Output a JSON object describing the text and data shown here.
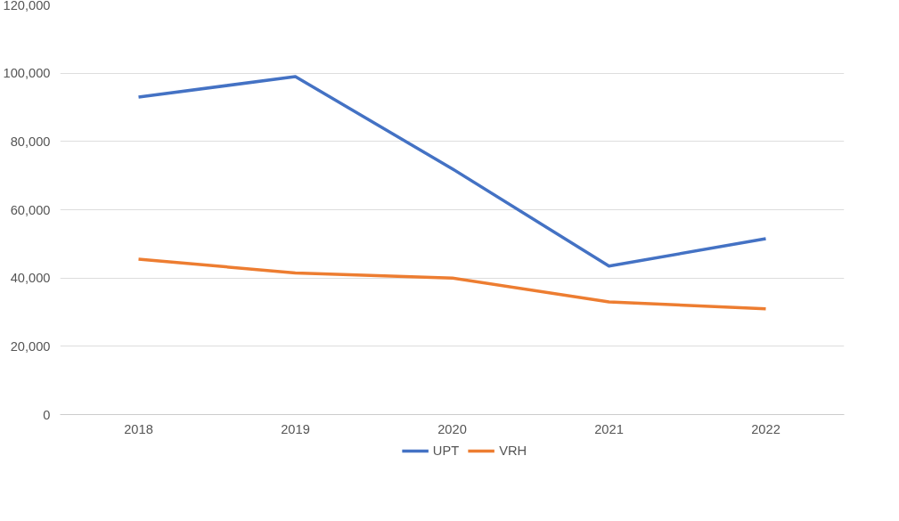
{
  "chart_data": {
    "type": "line",
    "categories": [
      "2018",
      "2019",
      "2020",
      "2021",
      "2022"
    ],
    "series": [
      {
        "name": "UPT",
        "color": "#4472c4",
        "values": [
          93000,
          99000,
          72000,
          43500,
          51500
        ]
      },
      {
        "name": "VRH",
        "color": "#ed7d31",
        "values": [
          45500,
          41500,
          40000,
          33000,
          31000
        ]
      }
    ],
    "ylim": [
      0,
      120000
    ],
    "yticks": [
      {
        "value": 0,
        "label": "0"
      },
      {
        "value": 20000,
        "label": "20,000"
      },
      {
        "value": 40000,
        "label": "40,000"
      },
      {
        "value": 60000,
        "label": "60,000"
      },
      {
        "value": 80000,
        "label": "80,000"
      },
      {
        "value": 100000,
        "label": "100,000"
      },
      {
        "value": 120000,
        "label": "120,000"
      }
    ],
    "grid": "y",
    "legend": "bottom",
    "marker": "none",
    "line_style": "solid"
  }
}
